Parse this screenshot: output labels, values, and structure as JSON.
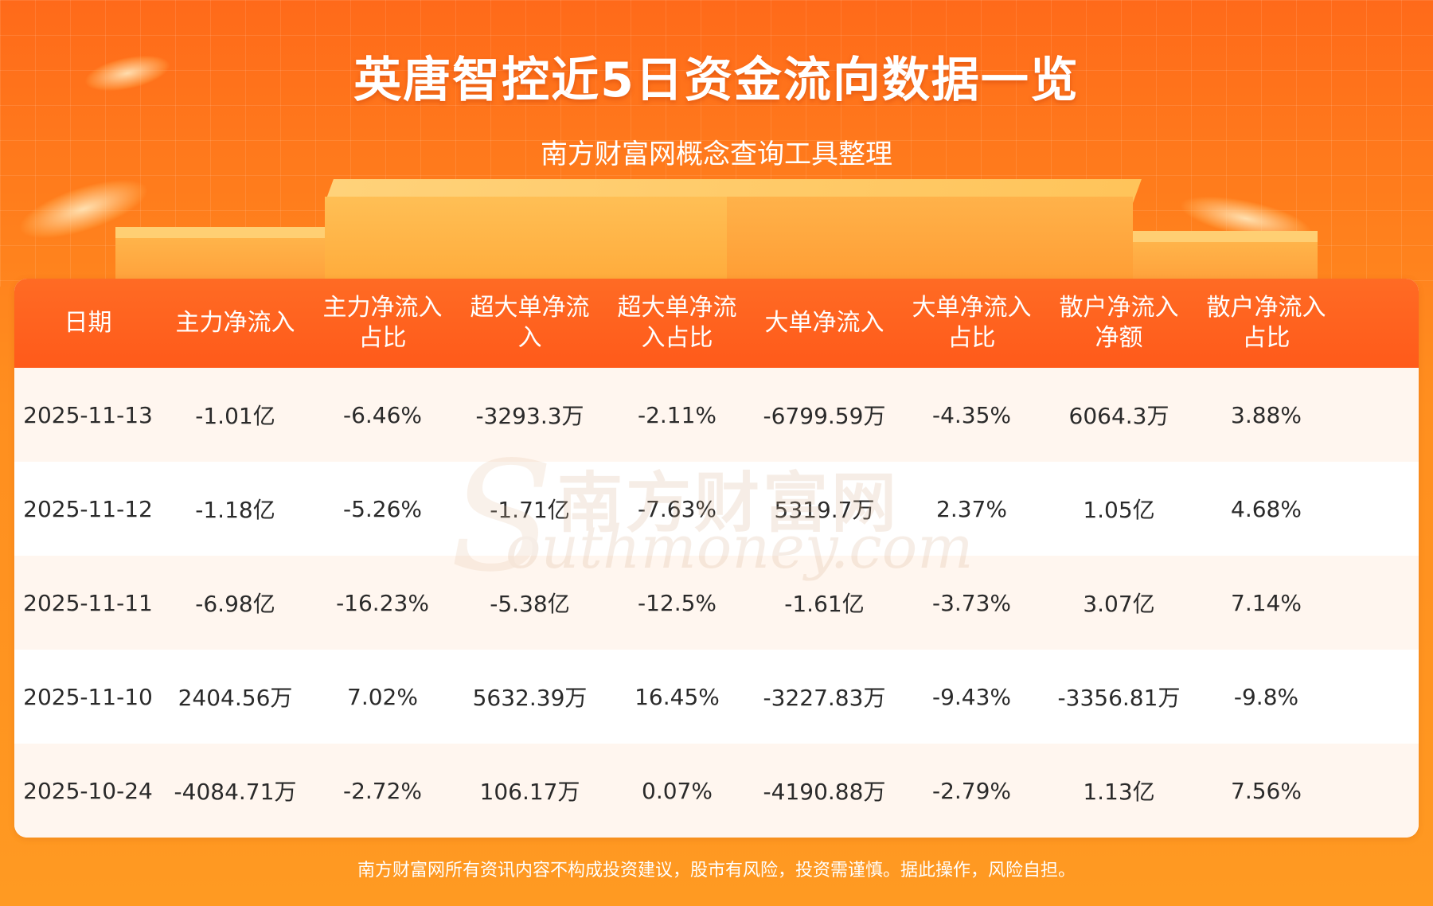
{
  "header": {
    "title": "英唐智控近5日资金流向数据一览",
    "subtitle": "南方财富网概念查询工具整理"
  },
  "table": {
    "columns": [
      "日期",
      "主力净流入",
      "主力净流入占比",
      "超大单净流入",
      "超大单净流入占比",
      "大单净流入",
      "大单净流入占比",
      "散户净流入净额",
      "散户净流入占比"
    ],
    "rows": [
      [
        "2025-11-13",
        "-1.01亿",
        "-6.46%",
        "-3293.3万",
        "-2.11%",
        "-6799.59万",
        "-4.35%",
        "6064.3万",
        "3.88%"
      ],
      [
        "2025-11-12",
        "-1.18亿",
        "-5.26%",
        "-1.71亿",
        "-7.63%",
        "5319.7万",
        "2.37%",
        "1.05亿",
        "4.68%"
      ],
      [
        "2025-11-11",
        "-6.98亿",
        "-16.23%",
        "-5.38亿",
        "-12.5%",
        "-1.61亿",
        "-3.73%",
        "3.07亿",
        "7.14%"
      ],
      [
        "2025-11-10",
        "2404.56万",
        "7.02%",
        "5632.39万",
        "16.45%",
        "-3227.83万",
        "-9.43%",
        "-3356.81万",
        "-9.8%"
      ],
      [
        "2025-10-24",
        "-4084.71万",
        "-2.72%",
        "106.17万",
        "0.07%",
        "-4190.88万",
        "-2.79%",
        "1.13亿",
        "7.56%"
      ]
    ]
  },
  "watermark": {
    "cn": "南方财富网",
    "en": "outhmoney.com"
  },
  "footer": {
    "disclaimer": "南方财富网所有资讯内容不构成投资建议，股市有风险，投资需谨慎。据此操作，风险自担。"
  },
  "colors": {
    "header_bg": "#ff5a1a",
    "row_alt": "#fff6ef",
    "page_bg": "#ff8f1f"
  }
}
